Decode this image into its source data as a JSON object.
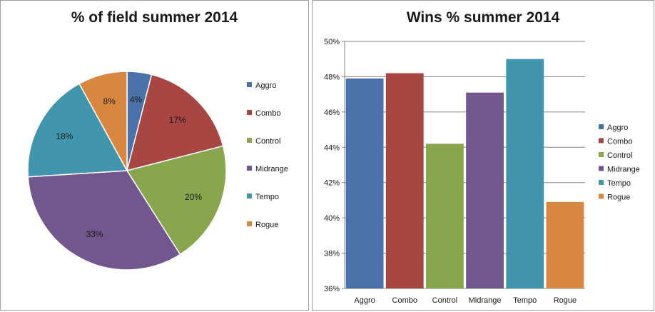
{
  "chart_data": [
    {
      "type": "pie",
      "title": "% of field summer 2014",
      "categories": [
        "Aggro",
        "Combo",
        "Control",
        "Midrange",
        "Tempo",
        "Rogue"
      ],
      "values": [
        4,
        17,
        20,
        33,
        18,
        8
      ],
      "data_labels": [
        "4%",
        "17%",
        "20%",
        "33%",
        "18%",
        "8%"
      ],
      "colors": [
        "#4a72a8",
        "#a84644",
        "#89a64e",
        "#71578e",
        "#4196ae",
        "#d88741"
      ],
      "legend": "right"
    },
    {
      "type": "bar",
      "title": "Wins % summer 2014",
      "categories": [
        "Aggro",
        "Combo",
        "Control",
        "Midrange",
        "Tempo",
        "Rogue"
      ],
      "values": [
        47.9,
        48.2,
        44.2,
        47.1,
        49.0,
        40.9
      ],
      "ylim": [
        36,
        50
      ],
      "yticks": [
        36,
        38,
        40,
        42,
        44,
        46,
        48,
        50
      ],
      "ytick_labels": [
        "36%",
        "38%",
        "40%",
        "42%",
        "44%",
        "46%",
        "48%",
        "50%"
      ],
      "xlabel": "",
      "ylabel": "",
      "grid": true,
      "colors": [
        "#4a72a8",
        "#a84644",
        "#89a64e",
        "#71578e",
        "#4196ae",
        "#d88741"
      ],
      "legend": "right"
    }
  ]
}
